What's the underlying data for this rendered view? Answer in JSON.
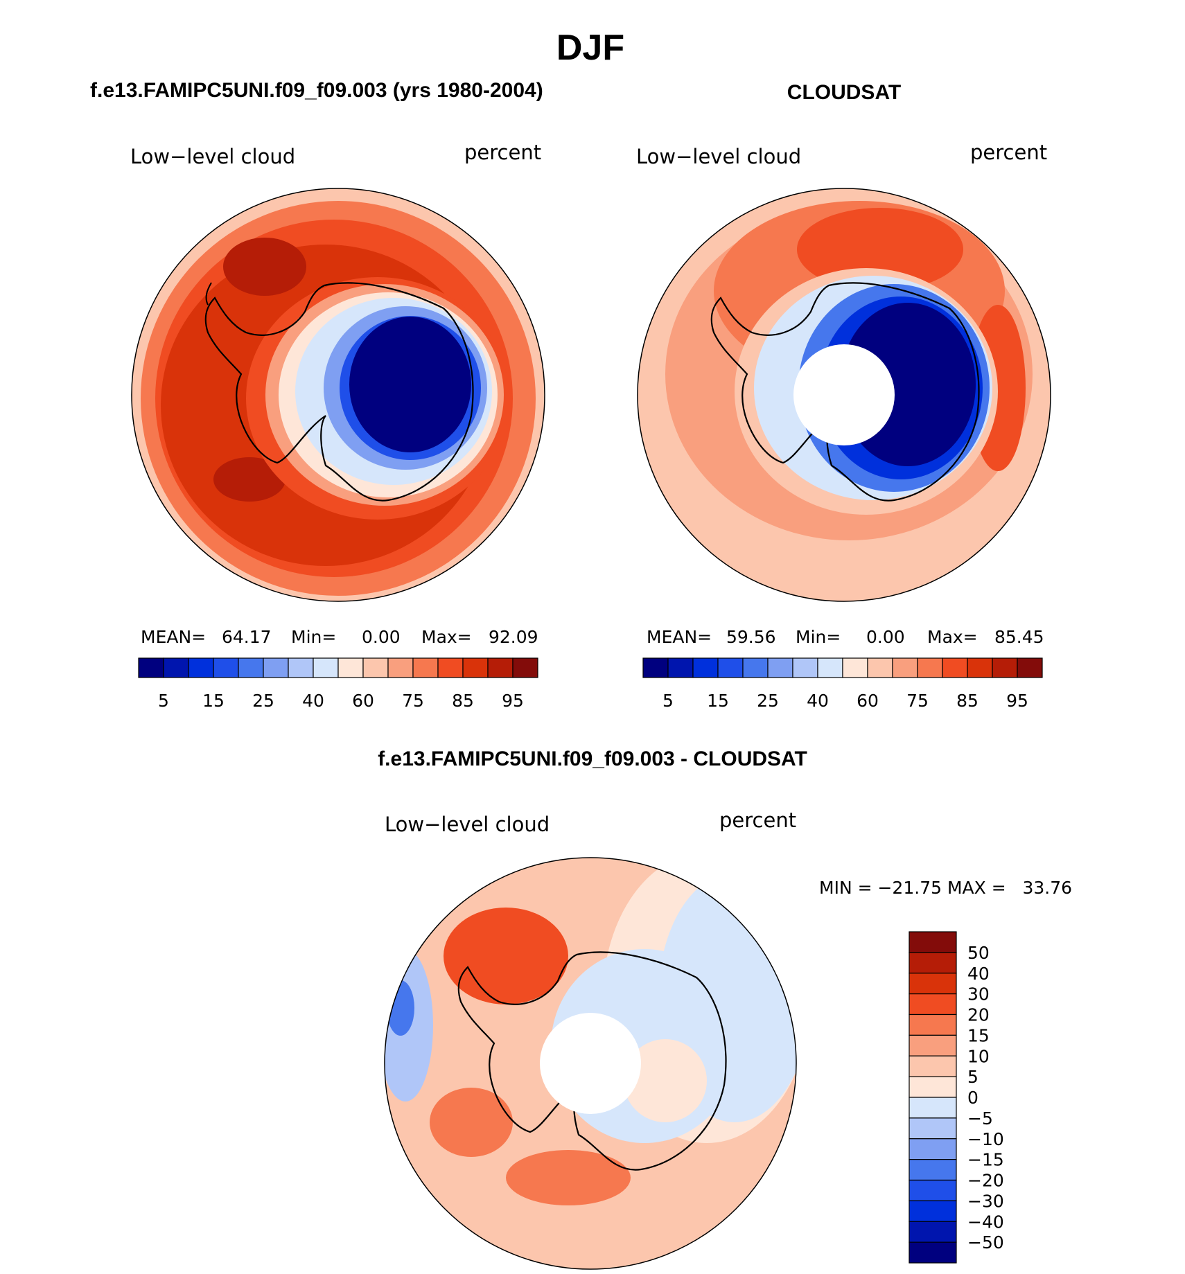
{
  "main_title": "DJF",
  "palette_abs": [
    "#00007f",
    "#0015ae",
    "#0030dc",
    "#1f4fe9",
    "#4677ed",
    "#7f9ff2",
    "#b0c6f8",
    "#d6e6fb",
    "#fee6d8",
    "#fcc6ad",
    "#f99f7e",
    "#f6784f",
    "#f04c22",
    "#d9330a",
    "#b51d07",
    "#830c0a"
  ],
  "palette_diff": [
    "#830c0a",
    "#b51d07",
    "#d9330a",
    "#f04c22",
    "#f6784f",
    "#f99f7e",
    "#fcc6ad",
    "#fee6d8",
    "#d6e6fb",
    "#b0c6f8",
    "#7f9ff2",
    "#4677ed",
    "#1f4fe9",
    "#0030dc",
    "#0015ae",
    "#00007f"
  ],
  "chart_data": [
    {
      "type": "heatmap",
      "projection": "south-polar-stereographic",
      "title": "f.e13.FAMIPC5UNI.f09_f09.003 (yrs 1980-2004)",
      "left_label": "Low−level cloud",
      "right_label": "percent",
      "stats": {
        "mean_label": "MEAN=",
        "mean": "64.17",
        "min_label": "Min=",
        "min": "0.00",
        "max_label": "Max=",
        "max": "92.09"
      },
      "colorbar_ticks": [
        "5",
        "15",
        "25",
        "40",
        "60",
        "75",
        "85",
        "95"
      ],
      "has_polar_hole": false
    },
    {
      "type": "heatmap",
      "projection": "south-polar-stereographic",
      "title": "CLOUDSAT",
      "left_label": "Low−level cloud",
      "right_label": "percent",
      "stats": {
        "mean_label": "MEAN=",
        "mean": "59.56",
        "min_label": "Min=",
        "min": "0.00",
        "max_label": "Max=",
        "max": "85.45"
      },
      "colorbar_ticks": [
        "5",
        "15",
        "25",
        "40",
        "60",
        "75",
        "85",
        "95"
      ],
      "has_polar_hole": true
    },
    {
      "type": "heatmap",
      "projection": "south-polar-stereographic",
      "title": "f.e13.FAMIPC5UNI.f09_f09.003 - CLOUDSAT",
      "left_label": "Low−level cloud",
      "right_label": "percent",
      "minmax_text": "MIN = −21.75 MAX =   33.76",
      "colorbar_ticks": [
        "50",
        "40",
        "30",
        "20",
        "15",
        "10",
        "5",
        "0",
        "−5",
        "−10",
        "−15",
        "−20",
        "−30",
        "−40",
        "−50"
      ],
      "has_polar_hole": true
    }
  ]
}
